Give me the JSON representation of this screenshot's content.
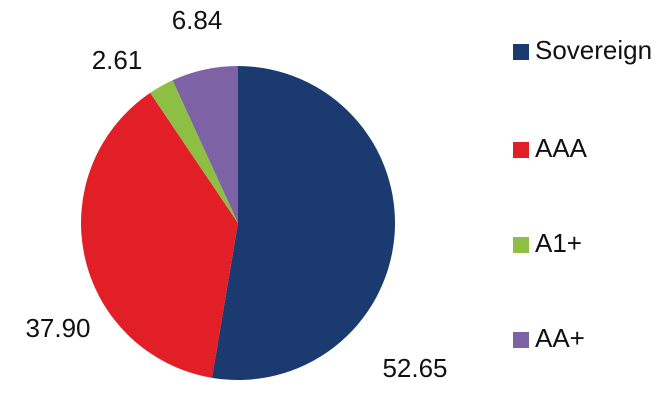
{
  "chart_data": {
    "type": "pie",
    "categories": [
      "Sovereign",
      "AAA",
      "A1+",
      "AA+"
    ],
    "values": [
      52.65,
      37.9,
      2.61,
      6.84
    ],
    "value_labels": [
      "52.65",
      "37.90",
      "2.61",
      "6.84"
    ],
    "colors": [
      "#1b3a6f",
      "#e21f26",
      "#8dbf44",
      "#7d63a6"
    ],
    "legend": "right"
  }
}
